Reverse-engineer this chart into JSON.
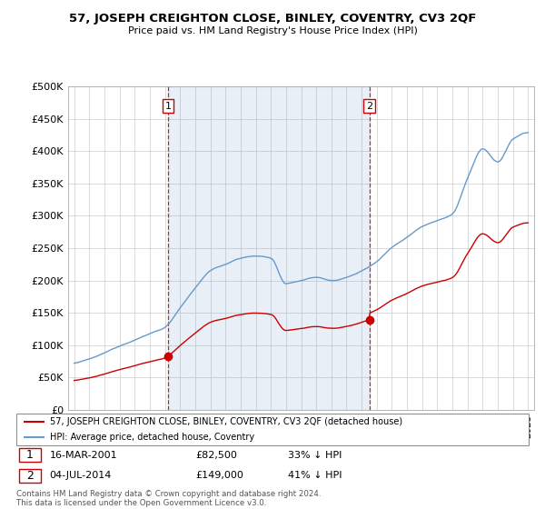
{
  "title": "57, JOSEPH CREIGHTON CLOSE, BINLEY, COVENTRY, CV3 2QF",
  "subtitle": "Price paid vs. HM Land Registry's House Price Index (HPI)",
  "hpi_label": "HPI: Average price, detached house, Coventry",
  "property_label": "57, JOSEPH CREIGHTON CLOSE, BINLEY, COVENTRY, CV3 2QF (detached house)",
  "footer": "Contains HM Land Registry data © Crown copyright and database right 2024.\nThis data is licensed under the Open Government Licence v3.0.",
  "ylim": [
    0,
    500000
  ],
  "yticks": [
    0,
    50000,
    100000,
    150000,
    200000,
    250000,
    300000,
    350000,
    400000,
    450000,
    500000
  ],
  "hpi_color": "#6699cc",
  "property_color": "#cc0000",
  "sale1_year": 2001.21,
  "sale1_price": 82500,
  "sale2_year": 2014.51,
  "sale2_price": 149000,
  "marker1_label": "1",
  "marker2_label": "2",
  "shade_color": "#ddeeff",
  "background_color": "#ffffff",
  "grid_color": "#cccccc"
}
